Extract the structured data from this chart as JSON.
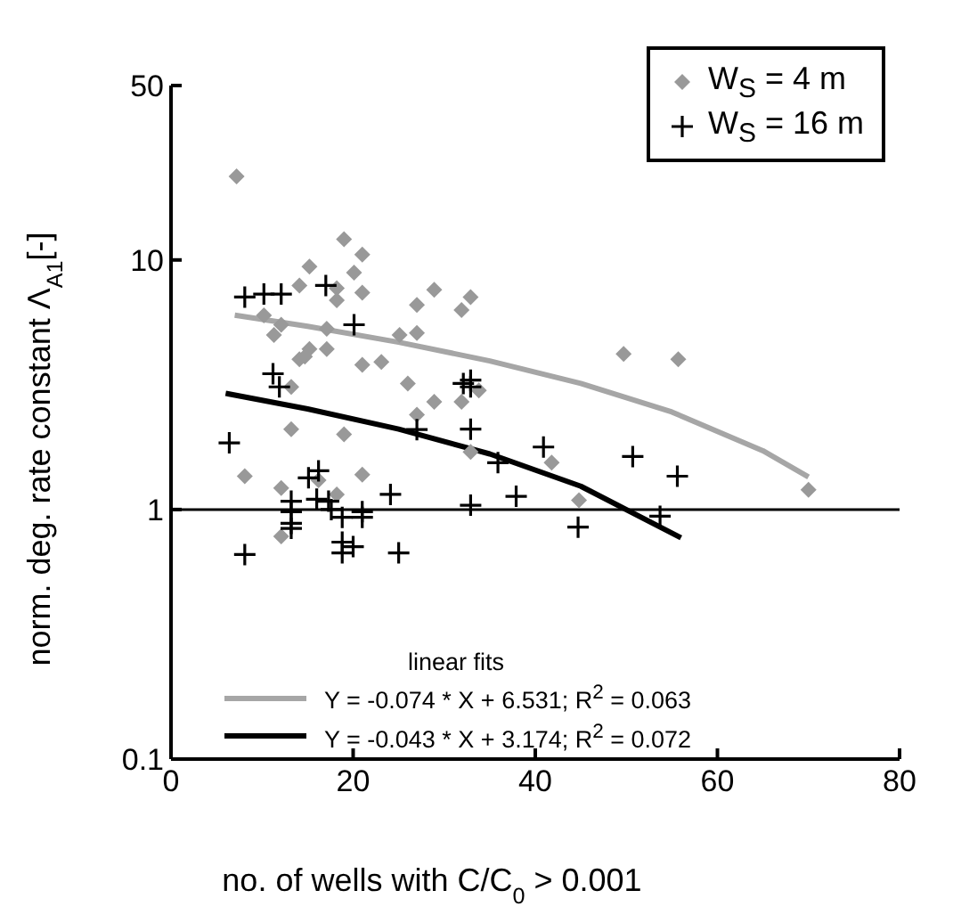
{
  "chart_data": {
    "type": "scatter",
    "xlabel": "no. of wells with C/C$_{0}$ > 0.001",
    "ylabel": "norm. deg. rate constant Λ$_{A1}$[-]",
    "xlim": [
      0,
      80
    ],
    "xticks": [
      0,
      20,
      40,
      60,
      80
    ],
    "ylim": [
      0.1,
      50
    ],
    "yticks": [
      0.1,
      1,
      10,
      50
    ],
    "log": "y",
    "grid": false,
    "legend": "top right",
    "legend_title": "linear fits",
    "ref_lines": [
      {
        "axis": "y",
        "value": 1,
        "color": "#000000"
      }
    ],
    "series": [
      {
        "name": "W$_{S}$ = 4 m",
        "marker": "diamond",
        "color": "#999999",
        "x": [
          7.2,
          19.0,
          21.0,
          15.2,
          20.1,
          14.1,
          18.2,
          21.0,
          18.2,
          28.9,
          27.0,
          31.9,
          32.9,
          10.2,
          12.1,
          11.3,
          17.1,
          25.1,
          27.0,
          15.2,
          17.1,
          14.7,
          14.1,
          21.0,
          23.1,
          13.2,
          26.0,
          28.9,
          31.9,
          27.0,
          13.2,
          19.0,
          49.7,
          55.7,
          33.8,
          32.9,
          41.8,
          44.8,
          8.1,
          12.1,
          16.2,
          21.0,
          18.2,
          12.1,
          70
        ],
        "values": [
          21.6,
          12.1,
          10.5,
          9.4,
          8.9,
          7.9,
          7.7,
          7.4,
          6.9,
          7.6,
          6.6,
          6.3,
          7.1,
          6.0,
          5.5,
          5.0,
          5.3,
          5.0,
          5.1,
          4.4,
          4.4,
          4.1,
          4.0,
          3.8,
          3.9,
          3.1,
          3.2,
          2.7,
          2.7,
          2.4,
          2.1,
          2.0,
          4.2,
          4.0,
          3.0,
          1.7,
          1.54,
          1.09,
          1.36,
          1.22,
          1.31,
          1.38,
          1.15,
          0.78,
          1.2
        ]
      },
      {
        "name": "W$_{S}$ = 16 m",
        "marker": "cross",
        "color": "#000000",
        "x": [
          6.4,
          8.1,
          10.2,
          12.1,
          17.0,
          20.1,
          11.2,
          11.9,
          27.0,
          32.1,
          32.9,
          32.9,
          32.9,
          40.9,
          35.9,
          50.7,
          55.6,
          37.9,
          32.9,
          44.7,
          53.7,
          15.1,
          16.2,
          13.2,
          13.2,
          13.2,
          13.2,
          16.0,
          17.3,
          17.6,
          18.8,
          18.8,
          18.8,
          20.0,
          21.0,
          21.0,
          24.1,
          8.1,
          25.0
        ],
        "values": [
          1.85,
          7.1,
          7.3,
          7.3,
          7.9,
          5.5,
          3.5,
          3.1,
          2.09,
          3.2,
          3.3,
          3.1,
          2.1,
          1.78,
          1.54,
          1.63,
          1.36,
          1.13,
          1.04,
          0.85,
          0.94,
          1.34,
          1.43,
          1.08,
          0.98,
          0.88,
          0.84,
          1.1,
          1.08,
          1.0,
          0.93,
          0.74,
          0.67,
          0.71,
          0.98,
          0.93,
          1.15,
          0.66,
          0.67
        ]
      },
      {
        "name": "Y = -0.074 * X + 6.531; R$^{2}$ = 0.063",
        "type": "line",
        "color": "#a6a6a6",
        "x": [
          7,
          15,
          25,
          35,
          45,
          55,
          65,
          70
        ],
        "values": [
          6.01,
          5.42,
          4.68,
          3.94,
          3.2,
          2.46,
          1.72,
          1.35
        ]
      },
      {
        "name": "Y = -0.043 * X + 3.174; R$^{2}$ = 0.072",
        "type": "line",
        "color": "#000000",
        "x": [
          6,
          15,
          25,
          35,
          45,
          56
        ],
        "values": [
          2.92,
          2.53,
          2.1,
          1.67,
          1.24,
          0.77
        ]
      }
    ]
  }
}
